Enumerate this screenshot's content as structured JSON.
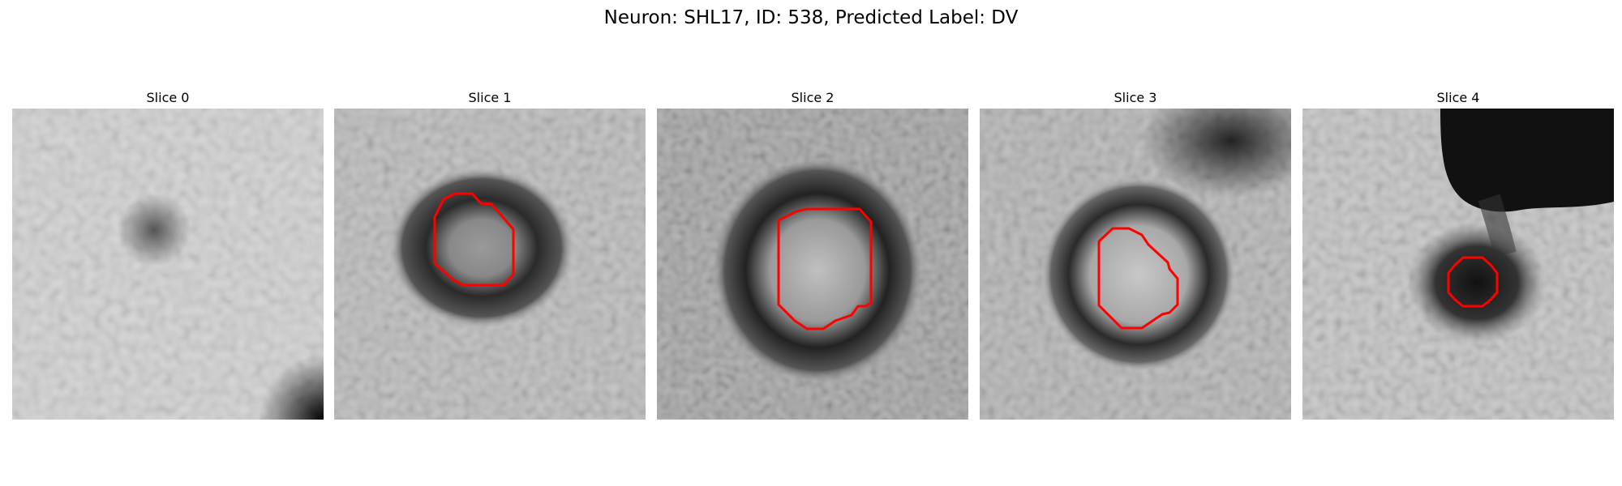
{
  "title": "Neuron: SHL17, ID: 538, Predicted Label: DV",
  "colors": {
    "contour": "#ff0000",
    "background": "#ffffff"
  },
  "panels": [
    {
      "title": "Slice 0",
      "has_contour": false
    },
    {
      "title": "Slice 1",
      "has_contour": true
    },
    {
      "title": "Slice 2",
      "has_contour": true
    },
    {
      "title": "Slice 3",
      "has_contour": true
    },
    {
      "title": "Slice 4",
      "has_contour": true
    }
  ]
}
